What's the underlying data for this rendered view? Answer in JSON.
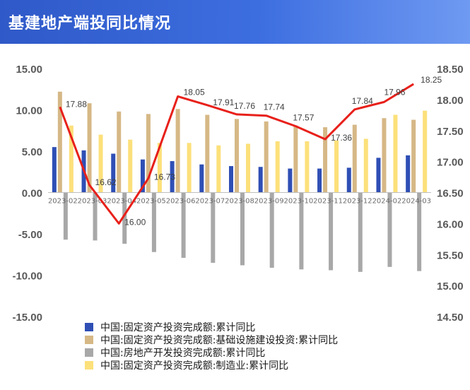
{
  "header": {
    "title": "基建地产端投同比情况"
  },
  "chart_data": {
    "type": "bar",
    "categories": [
      "2023-02",
      "2023-03",
      "2023-04",
      "2023-05",
      "2023-06",
      "2023-07",
      "2023-08",
      "2023-09",
      "2023-10",
      "2023-11",
      "2023-12",
      "2024-02",
      "2024-03"
    ],
    "y_left": {
      "min": -15,
      "max": 15,
      "ticks": [
        "15.00",
        "10.00",
        "5.00",
        "0.00",
        "-5.00",
        "-10.00",
        "-15.00"
      ]
    },
    "y_right": {
      "min": 14.5,
      "max": 18.5,
      "ticks": [
        "18.50",
        "18.00",
        "17.50",
        "17.00",
        "16.50",
        "16.00",
        "15.50",
        "15.00",
        "14.50"
      ]
    },
    "series": [
      {
        "name": "中国:固定资产投资完成额:累计同比",
        "type": "bar",
        "axis": "left",
        "color": "#2f4fb5",
        "values": [
          5.5,
          5.1,
          4.7,
          4.0,
          3.8,
          3.4,
          3.2,
          3.1,
          2.9,
          2.9,
          3.0,
          4.2,
          4.5
        ]
      },
      {
        "name": "中国:固定资产投资完成额:基础设施建设投资:累计同比",
        "type": "bar",
        "axis": "left",
        "color": "#d6b886",
        "values": [
          12.2,
          10.8,
          9.8,
          9.5,
          10.1,
          9.4,
          8.9,
          8.6,
          8.1,
          7.9,
          8.2,
          9.0,
          8.8
        ]
      },
      {
        "name": "中国:房地产开发投资完成额:累计同比",
        "type": "bar",
        "axis": "left",
        "color": "#a8a8a8",
        "values": [
          -5.7,
          -5.8,
          -6.2,
          -7.2,
          -7.9,
          -8.5,
          -8.8,
          -9.1,
          -9.3,
          -9.4,
          -9.6,
          -9.0,
          -9.5
        ]
      },
      {
        "name": "中国:固定资产投资完成额:制造业:累计同比",
        "type": "bar",
        "axis": "left",
        "color": "#fce07a",
        "values": [
          8.1,
          7.0,
          6.4,
          6.0,
          6.0,
          5.7,
          5.9,
          6.2,
          6.2,
          6.3,
          6.5,
          9.4,
          9.9
        ]
      },
      {
        "type": "line",
        "axis": "right",
        "color": "#e8201a",
        "values": [
          17.88,
          16.62,
          16.0,
          16.73,
          18.05,
          17.91,
          17.76,
          17.74,
          17.57,
          17.36,
          17.84,
          17.96,
          18.25
        ],
        "labels": [
          "17.88",
          "16.62",
          "16.00",
          "16.73",
          "18.05",
          "17.91",
          "17.76",
          "17.74",
          "17.57",
          "17.36",
          "17.84",
          "17.96",
          "18.25"
        ]
      }
    ],
    "legend_position": "bottom",
    "grid": false
  }
}
